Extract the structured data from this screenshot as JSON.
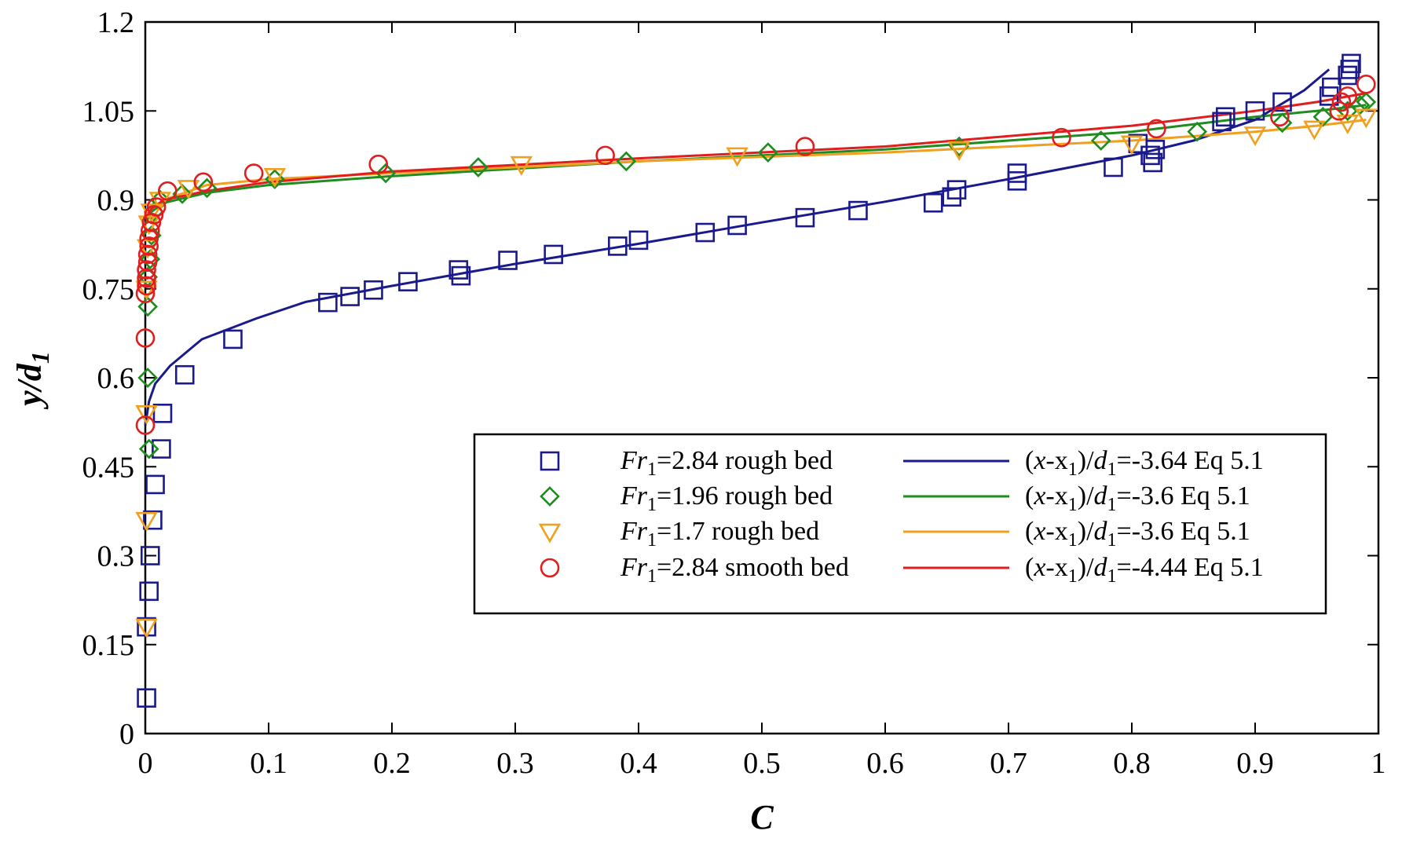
{
  "chart_data": {
    "type": "scatter",
    "title": "",
    "xlabel": "C",
    "ylabel": "y/d1",
    "ylabel_parts": {
      "main": "y/d",
      "sub": "1"
    },
    "xlim": [
      0,
      1
    ],
    "ylim": [
      0,
      1.2
    ],
    "xticks": [
      0,
      0.1,
      0.2,
      0.3,
      0.4,
      0.5,
      0.6,
      0.7,
      0.8,
      0.9,
      1
    ],
    "xtick_labels": [
      "0",
      "0.1",
      "0.2",
      "0.3",
      "0.4",
      "0.5",
      "0.6",
      "0.7",
      "0.8",
      "0.9",
      "1"
    ],
    "yticks": [
      0,
      0.15,
      0.3,
      0.45,
      0.6,
      0.75,
      0.9,
      1.05,
      1.2
    ],
    "ytick_labels": [
      "0",
      "0.15",
      "0.3",
      "0.45",
      "0.6",
      "0.75",
      "0.9",
      "1.05",
      "1.2"
    ],
    "grid": false,
    "legend_position": "center-right",
    "series": [
      {
        "name": "Fr1=2.84 rough bed",
        "label_parts": {
          "pre": "Fr",
          "sub": "1",
          "post": "=2.84 rough bed"
        },
        "marker": "square",
        "color": "#1a1a8c",
        "points": [
          [
            0.001,
            0.06
          ],
          [
            0.001,
            0.18
          ],
          [
            0.003,
            0.24
          ],
          [
            0.004,
            0.3
          ],
          [
            0.006,
            0.36
          ],
          [
            0.008,
            0.42
          ],
          [
            0.013,
            0.48
          ],
          [
            0.014,
            0.54
          ],
          [
            0.032,
            0.605
          ],
          [
            0.071,
            0.665
          ],
          [
            0.148,
            0.727
          ],
          [
            0.166,
            0.737
          ],
          [
            0.185,
            0.748
          ],
          [
            0.213,
            0.762
          ],
          [
            0.254,
            0.782
          ],
          [
            0.256,
            0.772
          ],
          [
            0.294,
            0.798
          ],
          [
            0.331,
            0.808
          ],
          [
            0.383,
            0.822
          ],
          [
            0.4,
            0.832
          ],
          [
            0.454,
            0.845
          ],
          [
            0.48,
            0.857
          ],
          [
            0.535,
            0.87
          ],
          [
            0.578,
            0.882
          ],
          [
            0.639,
            0.895
          ],
          [
            0.654,
            0.905
          ],
          [
            0.658,
            0.917
          ],
          [
            0.707,
            0.932
          ],
          [
            0.707,
            0.945
          ],
          [
            0.785,
            0.955
          ],
          [
            0.817,
            0.963
          ],
          [
            0.815,
            0.975
          ],
          [
            0.819,
            0.985
          ],
          [
            0.805,
            0.995
          ],
          [
            0.873,
            1.032
          ],
          [
            0.876,
            1.04
          ],
          [
            0.9,
            1.05
          ],
          [
            0.922,
            1.065
          ],
          [
            0.96,
            1.075
          ],
          [
            0.962,
            1.09
          ],
          [
            0.975,
            1.11
          ],
          [
            0.977,
            1.12
          ],
          [
            0.978,
            1.13
          ]
        ]
      },
      {
        "name": "Fr1=1.96 rough bed",
        "label_parts": {
          "pre": "Fr",
          "sub": "1",
          "post": "=1.96 rough bed"
        },
        "marker": "diamond",
        "color": "#1e8c1e",
        "points": [
          [
            0.003,
            0.48
          ],
          [
            0.002,
            0.6
          ],
          [
            0.002,
            0.72
          ],
          [
            0.002,
            0.77
          ],
          [
            0.004,
            0.8
          ],
          [
            0.005,
            0.84
          ],
          [
            0.007,
            0.88
          ],
          [
            0.012,
            0.9
          ],
          [
            0.03,
            0.91
          ],
          [
            0.05,
            0.92
          ],
          [
            0.105,
            0.935
          ],
          [
            0.195,
            0.945
          ],
          [
            0.27,
            0.955
          ],
          [
            0.39,
            0.965
          ],
          [
            0.505,
            0.98
          ],
          [
            0.66,
            0.99
          ],
          [
            0.775,
            1.0
          ],
          [
            0.853,
            1.015
          ],
          [
            0.922,
            1.03
          ],
          [
            0.955,
            1.04
          ],
          [
            0.975,
            1.05
          ],
          [
            0.985,
            1.06
          ],
          [
            0.99,
            1.065
          ]
        ]
      },
      {
        "name": "Fr1=1.7 rough bed",
        "label_parts": {
          "pre": "Fr",
          "sub": "1",
          "post": "=1.7 rough bed"
        },
        "marker": "triangle-down",
        "color": "#f0a01e",
        "points": [
          [
            0.001,
            0.18
          ],
          [
            0.001,
            0.36
          ],
          [
            0.001,
            0.54
          ],
          [
            0.001,
            0.75
          ],
          [
            0.002,
            0.82
          ],
          [
            0.003,
            0.86
          ],
          [
            0.005,
            0.88
          ],
          [
            0.012,
            0.9
          ],
          [
            0.035,
            0.92
          ],
          [
            0.105,
            0.94
          ],
          [
            0.305,
            0.96
          ],
          [
            0.48,
            0.975
          ],
          [
            0.66,
            0.985
          ],
          [
            0.8,
            0.995
          ],
          [
            0.9,
            1.01
          ],
          [
            0.948,
            1.02
          ],
          [
            0.975,
            1.03
          ],
          [
            0.99,
            1.04
          ]
        ]
      },
      {
        "name": "Fr1=2.84 smooth bed",
        "label_parts": {
          "pre": "Fr",
          "sub": "1",
          "post": "=2.84 smooth bed"
        },
        "marker": "circle",
        "color": "#e11e1e",
        "points": [
          [
            0.0,
            0.52
          ],
          [
            0.0,
            0.667
          ],
          [
            0.0,
            0.742
          ],
          [
            0.001,
            0.755
          ],
          [
            0.001,
            0.768
          ],
          [
            0.001,
            0.782
          ],
          [
            0.002,
            0.795
          ],
          [
            0.002,
            0.808
          ],
          [
            0.003,
            0.822
          ],
          [
            0.003,
            0.835
          ],
          [
            0.004,
            0.848
          ],
          [
            0.005,
            0.862
          ],
          [
            0.007,
            0.875
          ],
          [
            0.009,
            0.888
          ],
          [
            0.018,
            0.915
          ],
          [
            0.047,
            0.93
          ],
          [
            0.088,
            0.945
          ],
          [
            0.189,
            0.96
          ],
          [
            0.373,
            0.975
          ],
          [
            0.535,
            0.99
          ],
          [
            0.743,
            1.005
          ],
          [
            0.82,
            1.02
          ],
          [
            0.92,
            1.04
          ],
          [
            0.968,
            1.05
          ],
          [
            0.97,
            1.065
          ],
          [
            0.975,
            1.075
          ],
          [
            0.99,
            1.095
          ]
        ]
      }
    ],
    "fits": [
      {
        "name": "(x-x1)/d1=-3.64 Eq 5.1",
        "label_parts": {
          "pre": "(",
          "v1": "x",
          "m1": "-x",
          "sub1": "1",
          "m2": ")/",
          "v2": "d",
          "sub2": "1",
          "post": "=-3.64 Eq 5.1"
        },
        "color": "#1a1a8c",
        "points": [
          [
            0.0,
            0.52
          ],
          [
            0.003,
            0.56
          ],
          [
            0.008,
            0.59
          ],
          [
            0.02,
            0.62
          ],
          [
            0.046,
            0.665
          ],
          [
            0.09,
            0.7
          ],
          [
            0.13,
            0.728
          ],
          [
            0.2,
            0.755
          ],
          [
            0.3,
            0.792
          ],
          [
            0.4,
            0.826
          ],
          [
            0.5,
            0.862
          ],
          [
            0.6,
            0.897
          ],
          [
            0.7,
            0.935
          ],
          [
            0.8,
            0.975
          ],
          [
            0.85,
            1.0
          ],
          [
            0.9,
            1.035
          ],
          [
            0.94,
            1.085
          ],
          [
            0.96,
            1.12
          ]
        ]
      },
      {
        "name": "(x-x1)/d1=-3.6 Eq 5.1",
        "label_parts": {
          "pre": "(",
          "v1": "x",
          "m1": "-x",
          "sub1": "1",
          "m2": ")/",
          "v2": "d",
          "sub2": "1",
          "post": "=-3.6 Eq 5.1"
        },
        "color": "#1e8c1e",
        "points": [
          [
            0.0,
            0.86
          ],
          [
            0.005,
            0.88
          ],
          [
            0.015,
            0.895
          ],
          [
            0.05,
            0.912
          ],
          [
            0.1,
            0.925
          ],
          [
            0.2,
            0.94
          ],
          [
            0.4,
            0.965
          ],
          [
            0.6,
            0.985
          ],
          [
            0.8,
            1.015
          ],
          [
            0.9,
            1.04
          ],
          [
            0.95,
            1.05
          ],
          [
            0.99,
            1.06
          ]
        ]
      },
      {
        "name": "(x-x1)/d1=-3.6 Eq 5.1",
        "label_parts": {
          "pre": "(",
          "v1": "x",
          "m1": "-x",
          "sub1": "1",
          "m2": ")/",
          "v2": "d",
          "sub2": "1",
          "post": "=-3.6 Eq 5.1"
        },
        "color": "#f0a01e",
        "points": [
          [
            0.0,
            0.87
          ],
          [
            0.005,
            0.885
          ],
          [
            0.015,
            0.9
          ],
          [
            0.05,
            0.925
          ],
          [
            0.1,
            0.935
          ],
          [
            0.2,
            0.945
          ],
          [
            0.4,
            0.965
          ],
          [
            0.6,
            0.98
          ],
          [
            0.8,
            1.0
          ],
          [
            0.9,
            1.015
          ],
          [
            0.95,
            1.025
          ],
          [
            0.99,
            1.035
          ]
        ]
      },
      {
        "name": "(x-x1)/d1=-4.44 Eq 5.1",
        "label_parts": {
          "pre": "(",
          "v1": "x",
          "m1": "-x",
          "sub1": "1",
          "m2": ")/",
          "v2": "d",
          "sub2": "1",
          "post": "=-4.44 Eq 5.1"
        },
        "color": "#e11e1e",
        "points": [
          [
            0.0,
            0.87
          ],
          [
            0.005,
            0.885
          ],
          [
            0.015,
            0.9
          ],
          [
            0.05,
            0.915
          ],
          [
            0.1,
            0.93
          ],
          [
            0.2,
            0.948
          ],
          [
            0.4,
            0.97
          ],
          [
            0.6,
            0.99
          ],
          [
            0.8,
            1.025
          ],
          [
            0.9,
            1.05
          ],
          [
            0.95,
            1.065
          ],
          [
            0.99,
            1.08
          ]
        ]
      }
    ]
  }
}
